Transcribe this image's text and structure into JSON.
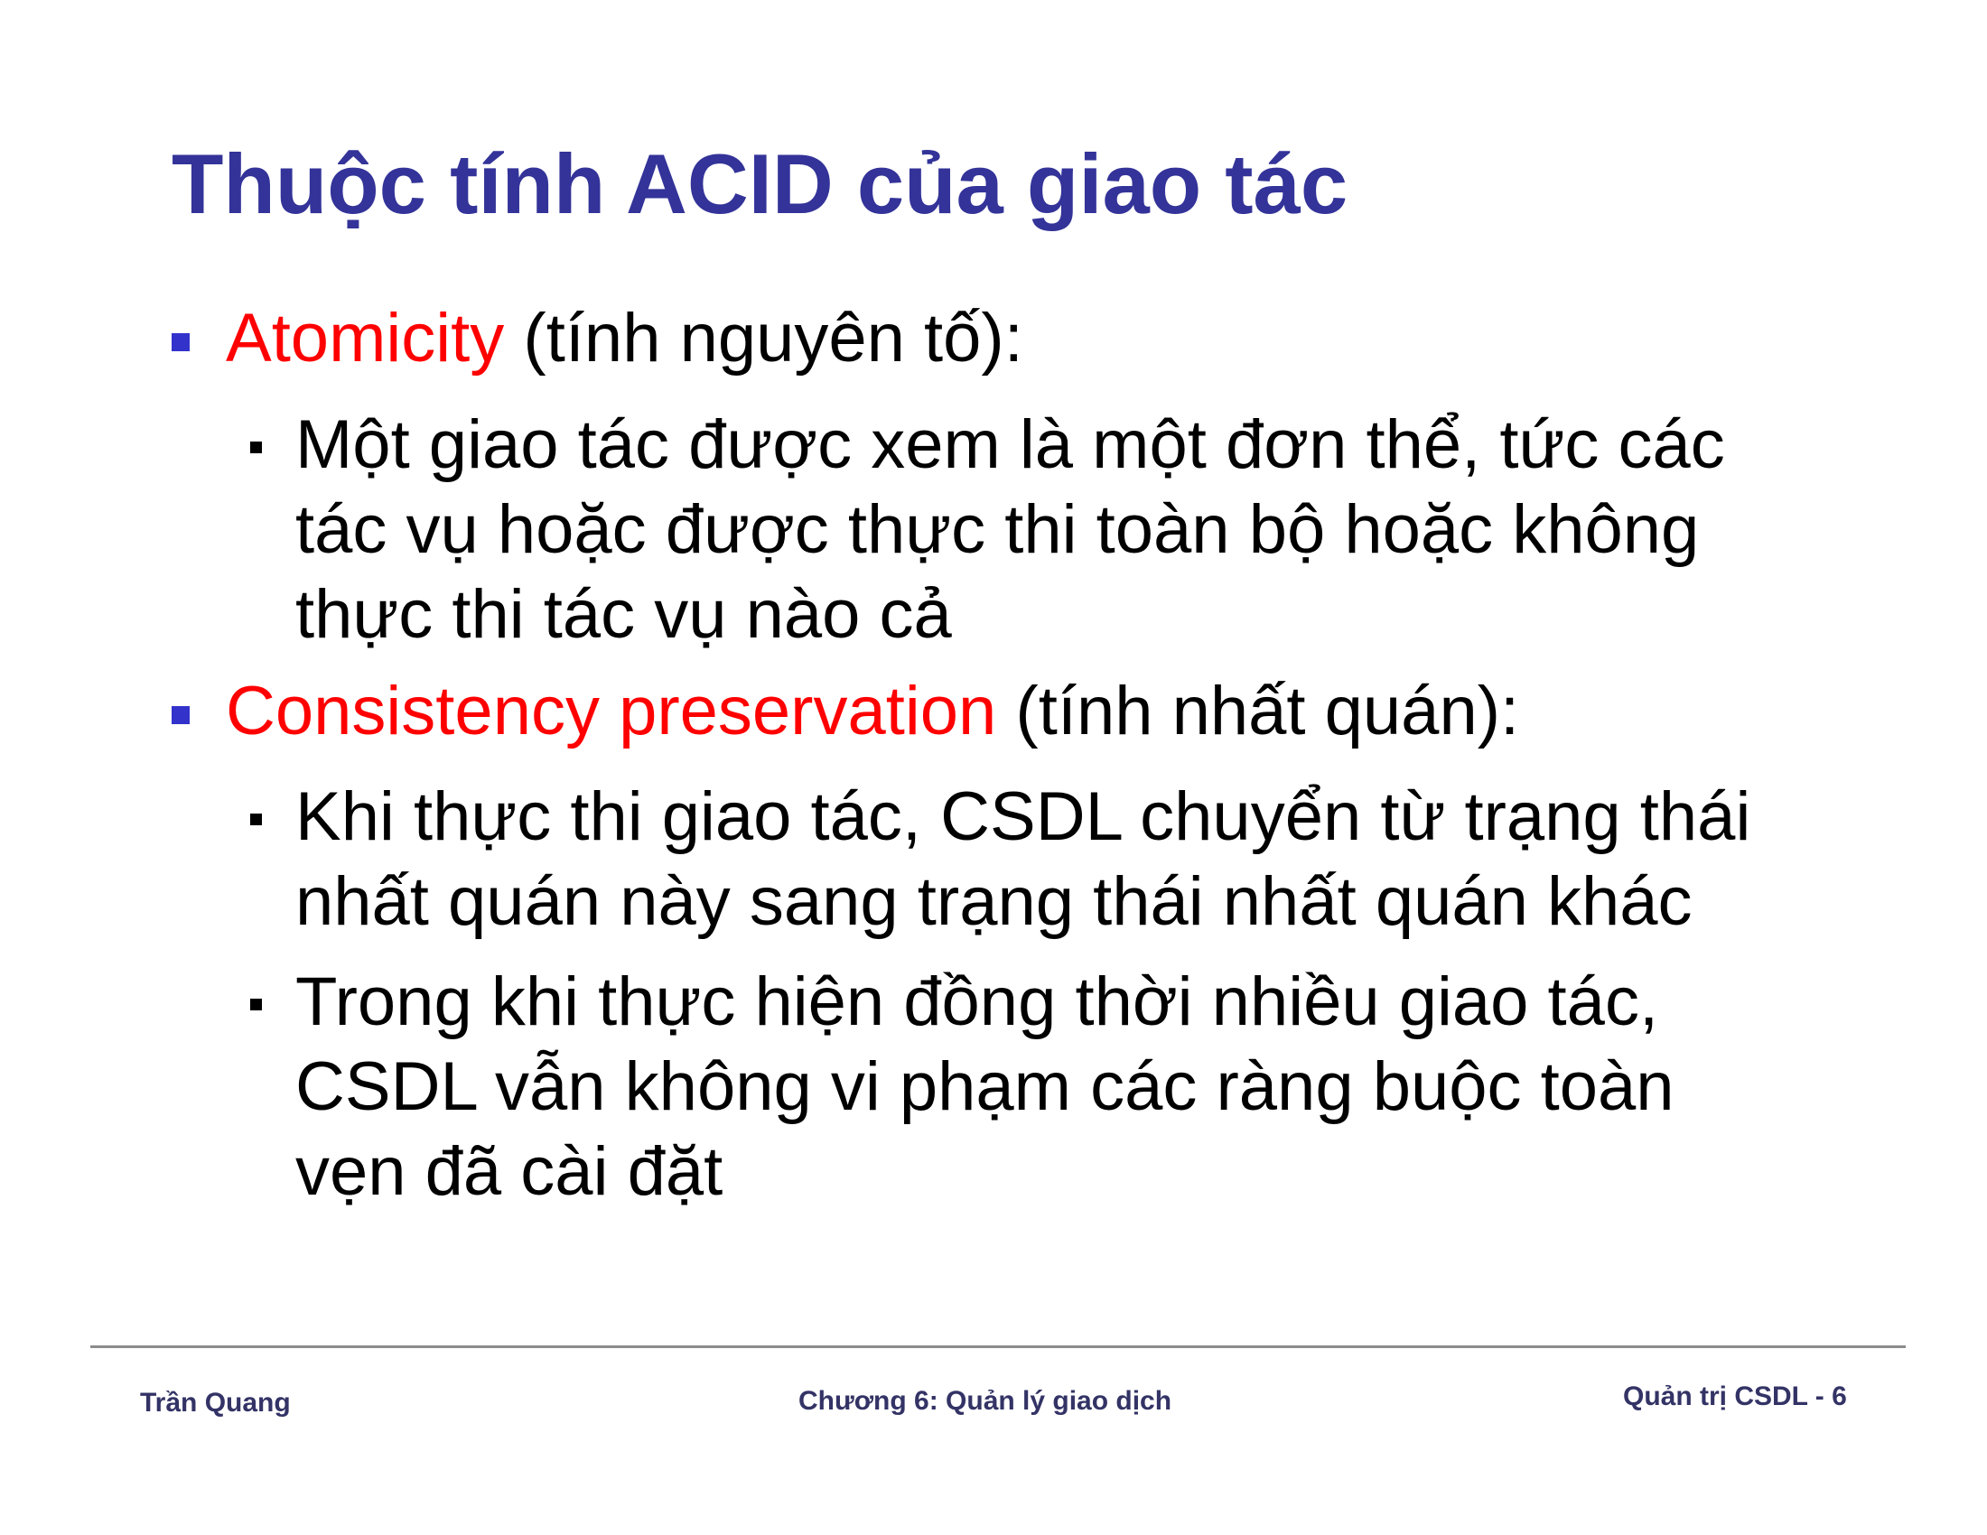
{
  "slide": {
    "title": "Thuộc tính ACID của giao tác",
    "items": [
      {
        "term": "Atomicity",
        "rest": " (tính nguyên tố):",
        "subitems": [
          {
            "lines": [
              "Một giao tác được xem là một đơn thể, tức các",
              "tác vụ hoặc được thực thi toàn bộ hoặc không",
              "thực thi tác vụ nào cả"
            ]
          }
        ]
      },
      {
        "term": "Consistency preservation",
        "rest": " (tính nhất quán):",
        "subitems": [
          {
            "lines": [
              "Khi thực thi giao tác, CSDL chuyển từ trạng thái",
              "nhất quán này sang trạng thái nhất quán khác"
            ]
          },
          {
            "lines": [
              "Trong khi thực hiện đồng thời nhiều giao tác,",
              "CSDL vẫn không vi phạm các ràng buộc toàn",
              "vẹn đã cài đặt"
            ]
          }
        ]
      }
    ]
  },
  "footer": {
    "author": "Trần Quang",
    "chapter": "Chương 6: Quản lý giao dịch",
    "page": "Quản trị CSDL - 6"
  },
  "colors": {
    "title": "#333399",
    "term": "#ff0000",
    "bullet_level1": "#3333cc",
    "footer_text": "#333366",
    "rule": "#8c8c8c"
  }
}
